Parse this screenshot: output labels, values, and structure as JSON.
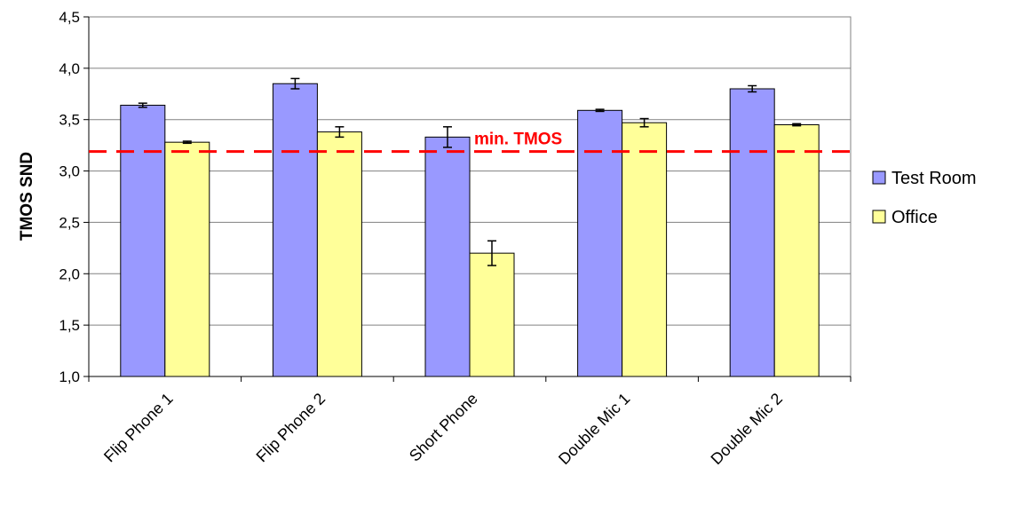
{
  "chart_data": {
    "type": "bar",
    "categories": [
      "Flip Phone 1",
      "Flip Phone 2",
      "Short Phone",
      "Double Mic 1",
      "Double Mic 2"
    ],
    "series": [
      {
        "name": "Test Room",
        "color": "#9999ff",
        "values": [
          3.64,
          3.85,
          3.33,
          3.59,
          3.8
        ],
        "errors": [
          0.02,
          0.05,
          0.1,
          0.01,
          0.03
        ]
      },
      {
        "name": "Office",
        "color": "#ffff99",
        "values": [
          3.28,
          3.38,
          2.2,
          3.47,
          3.45
        ],
        "errors": [
          0.01,
          0.05,
          0.12,
          0.04,
          0.01
        ]
      }
    ],
    "ylabel": "TMOS SND",
    "xlabel": "",
    "ylim": [
      1.0,
      4.5
    ],
    "yticks": [
      "1,0",
      "1,5",
      "2,0",
      "2,5",
      "3,0",
      "3,5",
      "4,0",
      "4,5"
    ],
    "yticks_values": [
      1.0,
      1.5,
      2.0,
      2.5,
      3.0,
      3.5,
      4.0,
      4.5
    ],
    "grid": true,
    "legend_position": "right",
    "reference_line": {
      "value": 3.19,
      "label": "min. TMOS",
      "color": "#ff0000"
    }
  }
}
